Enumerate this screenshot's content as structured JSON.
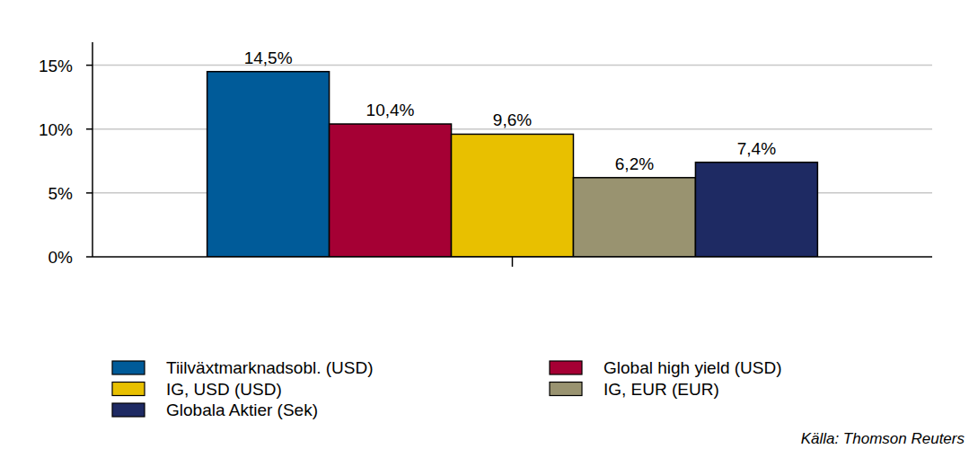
{
  "chart_data": {
    "type": "bar",
    "categories": [
      null
    ],
    "series": [
      {
        "name": "Tiilväxtmarknadsobl. (USD)",
        "color": "#005b99",
        "values": [
          14.5
        ],
        "value_labels": [
          "14,5%"
        ]
      },
      {
        "name": "Global high yield (USD)",
        "color": "#a50034",
        "values": [
          10.4
        ],
        "value_labels": [
          "10,4%"
        ]
      },
      {
        "name": "IG, USD (USD)",
        "color": "#e8c000",
        "values": [
          9.6
        ],
        "value_labels": [
          "9,6%"
        ]
      },
      {
        "name": "IG, EUR (EUR)",
        "color": "#999370",
        "values": [
          6.2
        ],
        "value_labels": [
          "6,2%"
        ]
      },
      {
        "name": "Globala Aktier (Sek)",
        "color": "#1e2a63",
        "values": [
          7.4
        ],
        "value_labels": [
          "7,4%"
        ]
      }
    ],
    "ylim": [
      0,
      16.8
    ],
    "yticks": [
      {
        "value": 0,
        "label": "0%"
      },
      {
        "value": 5,
        "label": "5%"
      },
      {
        "value": 10,
        "label": "10%"
      },
      {
        "value": 15,
        "label": "15%"
      }
    ],
    "grid": true,
    "legend": "bottom",
    "data_labels": true,
    "source": "Källa: Thomson Reuters"
  }
}
